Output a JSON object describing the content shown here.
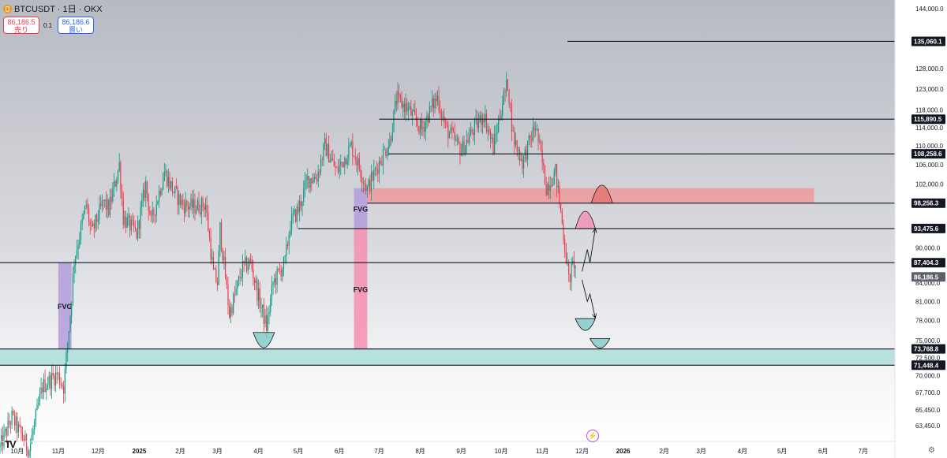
{
  "header": {
    "title": "BTCUSDT · 1日 · OKX",
    "sell_price": "86,186.5",
    "sell_label": "売り",
    "spread": "0.1",
    "buy_price": "86,186.6",
    "buy_label": "買い"
  },
  "chart_data": {
    "type": "candlestick",
    "title": "BTCUSDT · 1日 · OKX",
    "xlabel": "",
    "ylabel": "",
    "y_scale": "log",
    "ylim": [
      61500,
      146500
    ],
    "x_range": [
      "2024-09-18",
      "2026-07-25"
    ],
    "x_ticks": [
      {
        "date": "2024-10-01",
        "label": "10月"
      },
      {
        "date": "2024-11-01",
        "label": "11月"
      },
      {
        "date": "2024-12-01",
        "label": "12月"
      },
      {
        "date": "2025-01-01",
        "label": "2025"
      },
      {
        "date": "2025-02-01",
        "label": "2月"
      },
      {
        "date": "2025-03-01",
        "label": "3月"
      },
      {
        "date": "2025-04-01",
        "label": "4月"
      },
      {
        "date": "2025-05-01",
        "label": "5月"
      },
      {
        "date": "2025-06-01",
        "label": "6月"
      },
      {
        "date": "2025-07-01",
        "label": "7月"
      },
      {
        "date": "2025-08-01",
        "label": "8月"
      },
      {
        "date": "2025-09-01",
        "label": "9月"
      },
      {
        "date": "2025-10-01",
        "label": "10月"
      },
      {
        "date": "2025-11-01",
        "label": "11月"
      },
      {
        "date": "2025-12-01",
        "label": "12月"
      },
      {
        "date": "2026-01-01",
        "label": "2026"
      },
      {
        "date": "2026-02-01",
        "label": "2月"
      },
      {
        "date": "2026-03-01",
        "label": "3月"
      },
      {
        "date": "2026-04-01",
        "label": "4月"
      },
      {
        "date": "2026-05-01",
        "label": "5月"
      },
      {
        "date": "2026-06-01",
        "label": "6月"
      },
      {
        "date": "2026-07-01",
        "label": "7月"
      }
    ],
    "y_ticks": [
      {
        "value": 144000,
        "label": "144,000.0"
      },
      {
        "value": 128000,
        "label": "128,000.0"
      },
      {
        "value": 123000,
        "label": "123,000.0"
      },
      {
        "value": 118000,
        "label": "118,000.0"
      },
      {
        "value": 114000,
        "label": "114,000.0"
      },
      {
        "value": 110000,
        "label": "110,000.0"
      },
      {
        "value": 106000,
        "label": "106,000.0"
      },
      {
        "value": 102000,
        "label": "102,000.0"
      },
      {
        "value": 90000,
        "label": "90,000.0"
      },
      {
        "value": 84000,
        "label": "84,000.0"
      },
      {
        "value": 81000,
        "label": "81,000.0"
      },
      {
        "value": 78000,
        "label": "78,000.0"
      },
      {
        "value": 75000,
        "label": "75,000.0"
      },
      {
        "value": 72500,
        "label": "72,500.0"
      },
      {
        "value": 70000,
        "label": "70,000.0"
      },
      {
        "value": 67700,
        "label": "67,700.0"
      },
      {
        "value": 65450,
        "label": "65,450.0"
      },
      {
        "value": 63450,
        "label": "63,450.0"
      }
    ],
    "horizontal_levels": [
      {
        "value": 135060.1,
        "label": "135,060.1",
        "from": "2025-11-20"
      },
      {
        "value": 115890.5,
        "label": "115,890.5",
        "from": "2025-07-01"
      },
      {
        "value": 108258.6,
        "label": "108,258.6",
        "from": "2025-07-08"
      },
      {
        "value": 98256.3,
        "label": "98,256.3",
        "from": "2025-06-22"
      },
      {
        "value": 93475.6,
        "label": "93,475.6",
        "from": "2025-05-01"
      },
      {
        "value": 87404.3,
        "label": "87,404.3",
        "from": "2024-09-18"
      },
      {
        "value": 73768.8,
        "label": "73,768.8",
        "from": "2024-09-18"
      },
      {
        "value": 71448.4,
        "label": "71,448.4",
        "from": "2024-09-18"
      }
    ],
    "last_price": {
      "value": 86186.5,
      "label": "86,186.5"
    },
    "zones": [
      {
        "type": "support",
        "color": "#b2dfdb",
        "from": "2024-09-18",
        "to": "2026-07-25",
        "low": 71448.4,
        "high": 73768.8
      },
      {
        "type": "resistance",
        "color": "#ef9a9a",
        "from": "2025-06-22",
        "to": "2026-05-25",
        "low": 98256.3,
        "high": 101200
      },
      {
        "type": "fvg",
        "label": "FVG",
        "color": "#b39ddb",
        "from": "2024-11-01",
        "to": "2024-11-11",
        "low": 73768.8,
        "high": 87404.3
      },
      {
        "type": "fvg",
        "label": "FVG",
        "color": "#b39ddb",
        "from": "2025-06-12",
        "to": "2025-06-22",
        "low": 93475.6,
        "high": 101200
      },
      {
        "type": "fvg",
        "label": "FVG",
        "color": "#f48fb1",
        "from": "2025-06-12",
        "to": "2025-06-22",
        "low": 73768.8,
        "high": 93475.6
      }
    ],
    "arcs": [
      {
        "color": "#80cbc4",
        "type": "bowl",
        "from": "2025-03-28",
        "to": "2025-04-13",
        "top": 76200,
        "bottom": 73950
      },
      {
        "color": "#e57373",
        "type": "dome",
        "from": "2025-12-08",
        "to": "2025-12-24",
        "base": 98256.3,
        "top": 101800
      },
      {
        "color": "#f48fb1",
        "type": "dome",
        "from": "2025-11-26",
        "to": "2025-12-11",
        "base": 93475.6,
        "top": 96700
      },
      {
        "color": "#80cbc4",
        "type": "bowl",
        "from": "2025-11-26",
        "to": "2025-12-11",
        "top": 78300,
        "bottom": 76500
      },
      {
        "color": "#80cbc4",
        "type": "bowl",
        "from": "2025-12-07",
        "to": "2025-12-22",
        "top": 75300,
        "bottom": 73900
      }
    ],
    "projections": [
      {
        "points": [
          [
            "2025-12-01",
            85900
          ],
          [
            "2025-12-05",
            89700
          ],
          [
            "2025-12-07",
            87404.3
          ],
          [
            "2025-12-11",
            93475.6
          ]
        ]
      },
      {
        "points": [
          [
            "2025-12-01",
            84500
          ],
          [
            "2025-12-05",
            81000
          ],
          [
            "2025-12-07",
            82200
          ],
          [
            "2025-12-11",
            78400
          ]
        ]
      }
    ],
    "candles_daily_approx": true,
    "anchors": [
      [
        "2024-09-18",
        60800
      ],
      [
        "2024-09-27",
        64500
      ],
      [
        "2024-10-01",
        63200
      ],
      [
        "2024-10-10",
        60500
      ],
      [
        "2024-10-20",
        68500
      ],
      [
        "2024-10-31",
        70200
      ],
      [
        "2024-11-05",
        68500
      ],
      [
        "2024-11-10",
        79000
      ],
      [
        "2024-11-13",
        88000
      ],
      [
        "2024-11-22",
        98000
      ],
      [
        "2024-11-26",
        92500
      ],
      [
        "2024-12-05",
        98500
      ],
      [
        "2024-12-09",
        97000
      ],
      [
        "2024-12-17",
        106000
      ],
      [
        "2024-12-20",
        95500
      ],
      [
        "2024-12-30",
        92500
      ],
      [
        "2025-01-06",
        102000
      ],
      [
        "2025-01-10",
        94500
      ],
      [
        "2025-01-20",
        104500
      ],
      [
        "2025-01-27",
        100500
      ],
      [
        "2025-02-03",
        98000
      ],
      [
        "2025-02-10",
        97500
      ],
      [
        "2025-02-20",
        98000
      ],
      [
        "2025-02-26",
        85500
      ],
      [
        "2025-03-01",
        84000
      ],
      [
        "2025-03-03",
        93500
      ],
      [
        "2025-03-10",
        79000
      ],
      [
        "2025-03-20",
        86500
      ],
      [
        "2025-03-26",
        87500
      ],
      [
        "2025-03-31",
        82500
      ],
      [
        "2025-04-07",
        77000
      ],
      [
        "2025-04-12",
        84000
      ],
      [
        "2025-04-21",
        87500
      ],
      [
        "2025-04-25",
        94500
      ],
      [
        "2025-05-01",
        97000
      ],
      [
        "2025-05-08",
        103000
      ],
      [
        "2025-05-15",
        103500
      ],
      [
        "2025-05-21",
        110000
      ],
      [
        "2025-05-30",
        104500
      ],
      [
        "2025-06-10",
        110000
      ],
      [
        "2025-06-22",
        101000
      ],
      [
        "2025-07-01",
        106500
      ],
      [
        "2025-07-09",
        111000
      ],
      [
        "2025-07-14",
        120500
      ],
      [
        "2025-07-22",
        118500
      ],
      [
        "2025-08-02",
        113500
      ],
      [
        "2025-08-10",
        119000
      ],
      [
        "2025-08-14",
        121000
      ],
      [
        "2025-08-20",
        114000
      ],
      [
        "2025-09-01",
        109000
      ],
      [
        "2025-09-10",
        113500
      ],
      [
        "2025-09-18",
        117000
      ],
      [
        "2025-09-25",
        109500
      ],
      [
        "2025-10-02",
        120000
      ],
      [
        "2025-10-06",
        124500
      ],
      [
        "2025-10-10",
        112000
      ],
      [
        "2025-10-17",
        106500
      ],
      [
        "2025-10-27",
        114500
      ],
      [
        "2025-11-04",
        101500
      ],
      [
        "2025-11-11",
        104500
      ],
      [
        "2025-11-16",
        94500
      ],
      [
        "2025-11-21",
        84500
      ],
      [
        "2025-11-25",
        87500
      ],
      [
        "2025-11-26",
        86186.5
      ]
    ],
    "series": [
      {
        "name": "",
        "type": "candlestick",
        "up_color": "#089981",
        "down_color": "#f23645"
      }
    ],
    "grid": false,
    "legend": "none"
  },
  "icons": {
    "logo": "tradingview-logo",
    "bolt": "lightning-icon",
    "settings": "settings-icon"
  }
}
